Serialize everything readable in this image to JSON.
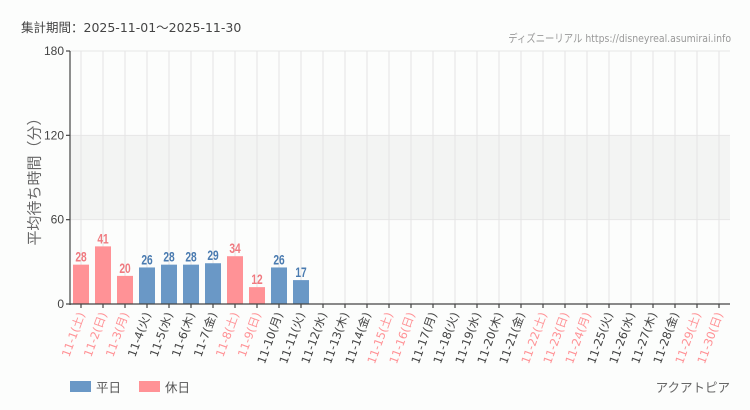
{
  "header": {
    "period_label": "集計期間：2025-11-01～2025-11-30",
    "credit": "ディズニーリアル https://disneyreal.asumirai.info"
  },
  "footer": {
    "park_name": "アクアトピア"
  },
  "legend": [
    {
      "label": "平日",
      "color": "#6a98c6"
    },
    {
      "label": "休日",
      "color": "#ff9296"
    }
  ],
  "colors": {
    "weekday": "#6a98c6",
    "holiday": "#ff9296",
    "weekday_text": "#4a7bb0",
    "holiday_text": "#f07a80",
    "label_weekday": "#444444",
    "label_holiday": "#ff9296"
  },
  "chart_data": {
    "type": "bar",
    "title": "",
    "xlabel": "",
    "ylabel": "平均待ち時間（分）",
    "ylim": [
      0,
      180
    ],
    "yticks": [
      0,
      60,
      120,
      180
    ],
    "grid": true,
    "shaded_band": [
      60,
      120
    ],
    "legend_position": "bottom-left",
    "categories": [
      "11-1(土)",
      "11-2(日)",
      "11-3(月)",
      "11-4(火)",
      "11-5(水)",
      "11-6(木)",
      "11-7(金)",
      "11-8(土)",
      "11-9(日)",
      "11-10(月)",
      "11-11(火)",
      "11-12(水)",
      "11-13(木)",
      "11-14(金)",
      "11-15(土)",
      "11-16(日)",
      "11-17(月)",
      "11-18(火)",
      "11-19(水)",
      "11-20(木)",
      "11-21(金)",
      "11-22(土)",
      "11-23(日)",
      "11-24(月)",
      "11-25(火)",
      "11-26(水)",
      "11-27(木)",
      "11-28(金)",
      "11-29(土)",
      "11-30(日)"
    ],
    "day_type": [
      "holiday",
      "holiday",
      "holiday",
      "weekday",
      "weekday",
      "weekday",
      "weekday",
      "holiday",
      "holiday",
      "weekday",
      "weekday",
      "weekday",
      "weekday",
      "weekday",
      "holiday",
      "holiday",
      "weekday",
      "weekday",
      "weekday",
      "weekday",
      "weekday",
      "holiday",
      "holiday",
      "holiday",
      "weekday",
      "weekday",
      "weekday",
      "weekday",
      "holiday",
      "holiday"
    ],
    "values": [
      28,
      41,
      20,
      26,
      28,
      28,
      29,
      34,
      12,
      26,
      17,
      null,
      null,
      null,
      null,
      null,
      null,
      null,
      null,
      null,
      null,
      null,
      null,
      null,
      null,
      null,
      null,
      null,
      null,
      null
    ],
    "series": [
      {
        "name": "平日",
        "values": [
          null,
          null,
          null,
          26,
          28,
          28,
          29,
          null,
          null,
          26,
          17,
          null,
          null,
          null,
          null,
          null,
          null,
          null,
          null,
          null,
          null,
          null,
          null,
          null,
          null,
          null,
          null,
          null,
          null,
          null
        ]
      },
      {
        "name": "休日",
        "values": [
          28,
          41,
          20,
          null,
          null,
          null,
          null,
          34,
          12,
          null,
          null,
          null,
          null,
          null,
          null,
          null,
          null,
          null,
          null,
          null,
          null,
          null,
          null,
          null,
          null,
          null,
          null,
          null,
          null,
          null
        ]
      }
    ]
  }
}
